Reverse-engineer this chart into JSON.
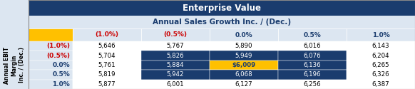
{
  "title1": "Enterprise Value",
  "title2": "Annual Sales Growth Inc. / (Dec.)",
  "col_header_label": "Annual EBIT\nMargin\nInc. / (Dec.)",
  "col_headers": [
    "(1.0%)",
    "(0.5%)",
    "0.0%",
    "0.5%",
    "1.0%"
  ],
  "row_headers": [
    "(1.0%)",
    "(0.5%)",
    "0.0%",
    "0.5%",
    "1.0%"
  ],
  "row_header_colors": [
    "#cc0000",
    "#cc0000",
    "#1a3c6e",
    "#1a3c6e",
    "#1a3c6e"
  ],
  "col_header_colors": [
    "#cc0000",
    "#cc0000",
    "#1a3c6e",
    "#1a3c6e",
    "#1a3c6e"
  ],
  "data": [
    [
      5646,
      5767,
      5890,
      6016,
      6143
    ],
    [
      5704,
      5826,
      5949,
      6076,
      6204
    ],
    [
      5761,
      5884,
      6009,
      6136,
      6265
    ],
    [
      5819,
      5942,
      6068,
      6196,
      6326
    ],
    [
      5877,
      6001,
      6127,
      6256,
      6387
    ]
  ],
  "highlight_cell": [
    2,
    2
  ],
  "highlight_cell_text": "$6,009",
  "dark_region_rows": [
    1,
    2,
    3
  ],
  "dark_region_cols": [
    1,
    2,
    3
  ],
  "dark_bg": "#1a3c6e",
  "light_bg": "#dce6f1",
  "header_bg": "#dce6f1",
  "title_bg": "#1a3c6e",
  "yellow_bg": "#ffc000",
  "row_label_bg": "#ffc000",
  "outer_bg": "#dce6f1",
  "white_bg": "#ffffff",
  "title_color": "#ffffff",
  "dark_cell_text": "#ffffff",
  "light_cell_text": "#1a3c6e",
  "black_text": "#000000",
  "highlight_text_color": "#1a3c6e"
}
